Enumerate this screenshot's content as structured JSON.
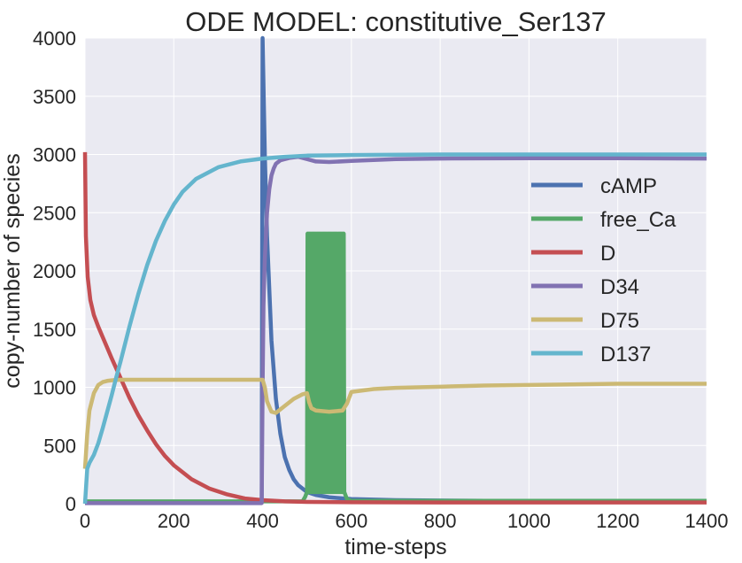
{
  "chart_data": {
    "type": "line",
    "title": "ODE MODEL: constitutive_Ser137",
    "xlabel": "time-steps",
    "ylabel": "copy-number of species",
    "xlim": [
      0,
      1400
    ],
    "ylim": [
      0,
      4000
    ],
    "xticks": [
      0,
      200,
      400,
      600,
      800,
      1000,
      1200,
      1400
    ],
    "yticks": [
      0,
      500,
      1000,
      1500,
      2000,
      2500,
      3000,
      3500,
      4000
    ],
    "grid": true,
    "legend_position": "center-right",
    "series": [
      {
        "name": "cAMP",
        "color": "#4c72b0",
        "x": [
          0,
          398,
          399,
          400,
          401,
          405,
          410,
          420,
          430,
          440,
          450,
          460,
          470,
          480,
          500,
          520,
          550,
          600,
          700,
          900,
          1100,
          1400
        ],
        "y": [
          10,
          10,
          2000,
          4000,
          3800,
          3000,
          2300,
          1400,
          900,
          600,
          400,
          290,
          210,
          160,
          100,
          75,
          55,
          40,
          30,
          25,
          22,
          20
        ]
      },
      {
        "name": "free_Ca",
        "color": "#55a868",
        "x": [
          0,
          490,
          496,
          500,
          505,
          580,
          585,
          590,
          600,
          1400
        ],
        "y": [
          20,
          20,
          60,
          2300,
          100,
          2320,
          150,
          40,
          25,
          25
        ],
        "oscillation": {
          "x_start": 500,
          "x_end": 585,
          "low": 100,
          "high": 2320
        }
      },
      {
        "name": "D",
        "color": "#c44e52",
        "x": [
          0,
          2,
          6,
          12,
          20,
          30,
          40,
          50,
          60,
          80,
          100,
          120,
          140,
          160,
          180,
          200,
          240,
          280,
          320,
          360,
          400,
          450,
          500,
          600,
          800,
          1000,
          1400
        ],
        "y": [
          3020,
          2300,
          1950,
          1750,
          1620,
          1520,
          1430,
          1340,
          1250,
          1080,
          910,
          760,
          630,
          510,
          410,
          330,
          210,
          130,
          80,
          45,
          30,
          20,
          15,
          12,
          10,
          10,
          10
        ]
      },
      {
        "name": "D34",
        "color": "#8172b2",
        "x": [
          0,
          398,
          400,
          402,
          405,
          410,
          415,
          420,
          425,
          430,
          440,
          460,
          480,
          500,
          520,
          550,
          600,
          700,
          800,
          1000,
          1200,
          1400
        ],
        "y": [
          5,
          5,
          1000,
          1700,
          2100,
          2500,
          2700,
          2820,
          2880,
          2920,
          2950,
          2970,
          2980,
          2960,
          2940,
          2935,
          2945,
          2960,
          2965,
          2968,
          2968,
          2965
        ]
      },
      {
        "name": "D75",
        "color": "#ccb974",
        "x": [
          0,
          5,
          10,
          20,
          30,
          40,
          50,
          60,
          80,
          100,
          150,
          200,
          300,
          400,
          405,
          410,
          420,
          430,
          450,
          470,
          490,
          500,
          505,
          510,
          520,
          550,
          580,
          590,
          600,
          650,
          700,
          800,
          900,
          1000,
          1200,
          1400
        ],
        "y": [
          300,
          600,
          800,
          950,
          1020,
          1045,
          1055,
          1060,
          1065,
          1065,
          1065,
          1065,
          1065,
          1065,
          1000,
          880,
          790,
          780,
          840,
          900,
          940,
          950,
          870,
          820,
          800,
          790,
          800,
          860,
          960,
          985,
          995,
          1005,
          1015,
          1020,
          1030,
          1030
        ]
      },
      {
        "name": "D137",
        "color": "#64b5cd",
        "x": [
          0,
          5,
          10,
          20,
          30,
          40,
          50,
          60,
          70,
          80,
          100,
          120,
          140,
          160,
          180,
          200,
          220,
          250,
          300,
          350,
          400,
          450,
          500,
          600,
          800,
          1000,
          1200,
          1400
        ],
        "y": [
          0,
          300,
          350,
          420,
          520,
          650,
          790,
          930,
          1080,
          1220,
          1520,
          1800,
          2050,
          2260,
          2430,
          2570,
          2680,
          2790,
          2890,
          2940,
          2965,
          2980,
          2990,
          2995,
          3000,
          3000,
          3000,
          3000
        ]
      }
    ]
  }
}
